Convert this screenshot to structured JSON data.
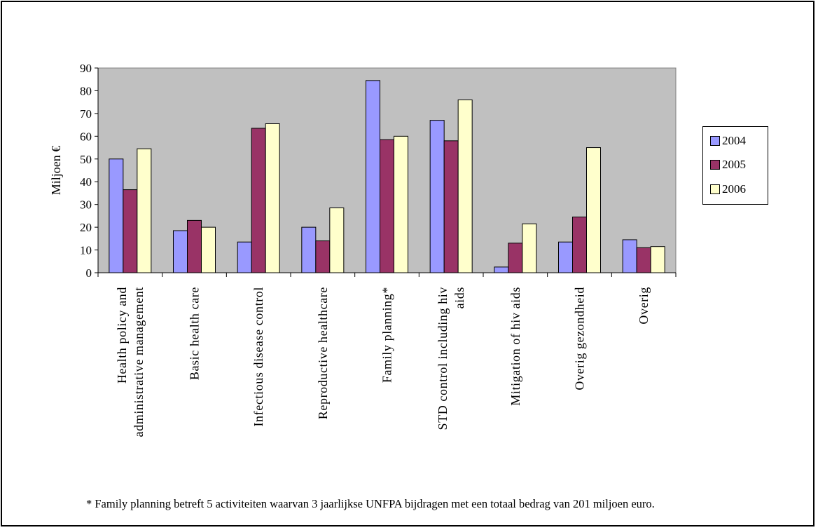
{
  "footnote": "* Family planning betreft  5 activiteiten waarvan 3 jaarlijkse UNFPA bijdragen met een totaal bedrag van 201 miljoen euro.",
  "colors": {
    "plot_background": "#c0c0c0",
    "series_2004": "#9999ff",
    "series_2005": "#993366",
    "series_2006": "#ffffcc"
  },
  "chart_data": {
    "type": "bar",
    "title": "",
    "xlabel": "",
    "ylabel": "Miljoen €",
    "ylim": [
      0,
      90
    ],
    "yticks": [
      0,
      10,
      20,
      30,
      40,
      50,
      60,
      70,
      80,
      90
    ],
    "grid": false,
    "legend_position": "right",
    "categories": [
      "Health policy and administrative management",
      "Basic health care",
      "Infectious disease control",
      "Reproductive healthcare",
      "Family planning*",
      "STD control including hiv aids",
      "Mitigation of hiv aids",
      "Overig gezondheid",
      "Overig"
    ],
    "category_lines": [
      [
        "Health policy and",
        "administrative management"
      ],
      [
        "Basic health care"
      ],
      [
        "Infectious disease control"
      ],
      [
        "Reproductive healthcare"
      ],
      [
        "Family planning*"
      ],
      [
        "STD control including hiv",
        "aids"
      ],
      [
        "Mitigation of hiv aids"
      ],
      [
        "Overig gezondheid"
      ],
      [
        "Overig"
      ]
    ],
    "series": [
      {
        "name": "2004",
        "color": "#9999ff",
        "values": [
          50,
          18.5,
          13.5,
          20,
          84.5,
          67,
          2.5,
          13.5,
          14.5
        ]
      },
      {
        "name": "2005",
        "color": "#993366",
        "values": [
          36.5,
          23,
          63.5,
          14,
          58.5,
          58,
          13,
          24.5,
          11
        ]
      },
      {
        "name": "2006",
        "color": "#ffffcc",
        "values": [
          54.5,
          20,
          65.5,
          28.5,
          60,
          76,
          21.5,
          55,
          11.5
        ]
      }
    ]
  }
}
